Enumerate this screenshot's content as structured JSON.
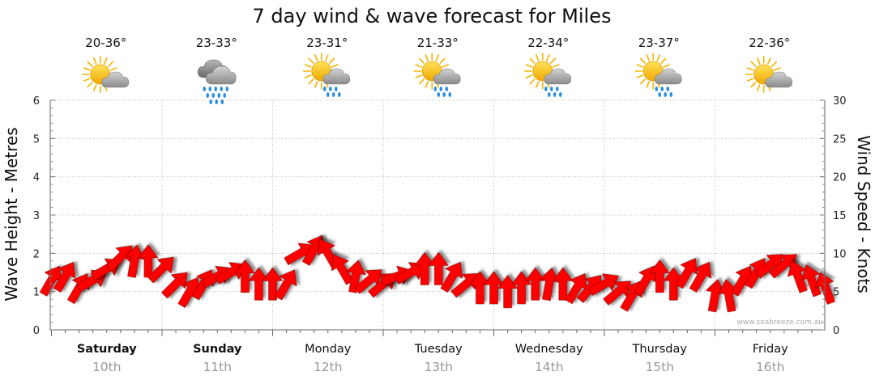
{
  "chart_data": {
    "type": "line",
    "title": "7 day wind & wave forecast for Miles",
    "ylabel_left": "Wave Height - Metres",
    "ylabel_right": "Wind Speed - Knots",
    "ylim_left": [
      0,
      6
    ],
    "ylim_right": [
      0,
      30
    ],
    "yticks_left": [
      "0",
      "1",
      "2",
      "3",
      "4",
      "5",
      "6"
    ],
    "yticks_right": [
      "0",
      "5",
      "10",
      "15",
      "20",
      "25",
      "30"
    ],
    "grid": true,
    "credit": "www.seabreeze.com.au",
    "days": [
      {
        "day": "Saturday",
        "date": "10th",
        "temp": "20-36°",
        "icon": "sun-cloud-icon",
        "bold": true
      },
      {
        "day": "Sunday",
        "date": "11th",
        "temp": "23-33°",
        "icon": "rain-cloud-icon",
        "bold": true
      },
      {
        "day": "Monday",
        "date": "12th",
        "temp": "23-31°",
        "icon": "sun-cloud-rain-icon",
        "bold": false
      },
      {
        "day": "Tuesday",
        "date": "13th",
        "temp": "21-33°",
        "icon": "sun-cloud-rain-icon",
        "bold": false
      },
      {
        "day": "Wednesday",
        "date": "14th",
        "temp": "22-34°",
        "icon": "sun-cloud-rain-icon",
        "bold": false
      },
      {
        "day": "Thursday",
        "date": "15th",
        "temp": "23-37°",
        "icon": "sun-cloud-rain-icon",
        "bold": false
      },
      {
        "day": "Friday",
        "date": "16th",
        "temp": "22-36°",
        "icon": "sun-cloud-icon",
        "bold": false
      }
    ],
    "series": [
      {
        "name": "Wind Speed (knots)",
        "color": "#ff0000",
        "hours_from_start": [
          0,
          3,
          6,
          9,
          12,
          15,
          18,
          21,
          24,
          27,
          30,
          33,
          36,
          39,
          42,
          45,
          48,
          51,
          54,
          57,
          60,
          63,
          66,
          69,
          72,
          75,
          78,
          81,
          84,
          87,
          90,
          93,
          96,
          99,
          102,
          105,
          108,
          111,
          114,
          117,
          120,
          123,
          126,
          129,
          132,
          135,
          138,
          141,
          144,
          147,
          150,
          153,
          156,
          159,
          162,
          165,
          168
        ],
        "values": [
          6.5,
          7,
          5.5,
          6.5,
          8,
          9.5,
          9,
          9,
          8,
          6,
          5,
          6,
          7,
          7.5,
          7,
          6,
          6,
          6,
          10,
          10.5,
          10,
          8,
          7,
          6.5,
          6,
          7,
          7.5,
          8,
          8,
          7,
          6,
          5.5,
          5.5,
          5,
          5.5,
          6,
          6,
          6,
          5.5,
          5.5,
          6,
          5,
          4.5,
          6.5,
          7,
          6,
          7.5,
          7,
          4.5,
          4.5,
          6.5,
          7.5,
          8.5,
          8.5,
          7,
          6.5,
          5.5
        ],
        "directions_deg": [
          60,
          60,
          60,
          30,
          30,
          45,
          80,
          90,
          45,
          45,
          60,
          60,
          30,
          30,
          90,
          90,
          90,
          60,
          30,
          60,
          120,
          120,
          80,
          40,
          40,
          20,
          30,
          90,
          90,
          60,
          40,
          90,
          90,
          90,
          90,
          90,
          80,
          90,
          60,
          50,
          30,
          40,
          60,
          60,
          90,
          90,
          60,
          60,
          80,
          100,
          60,
          60,
          40,
          40,
          110,
          110,
          110
        ]
      }
    ]
  }
}
